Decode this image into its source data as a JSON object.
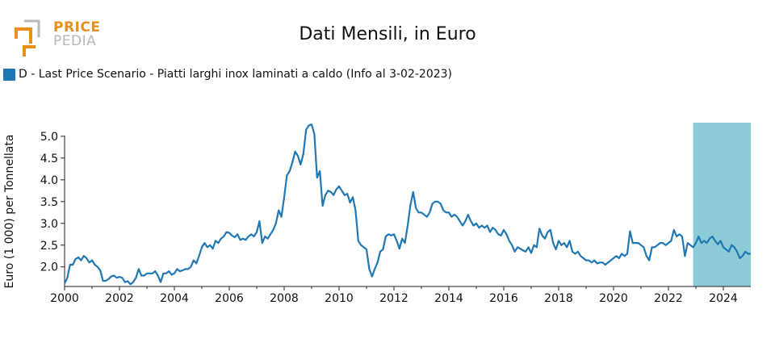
{
  "logo": {
    "line1": "PRICE",
    "line2": "PEDIA"
  },
  "colors": {
    "series": "#1f77b4",
    "forecast": "#8ecbd8",
    "logo_orange": "#e8901e",
    "logo_grey": "#b8b8b8"
  },
  "chart_data": {
    "type": "line",
    "title": "Dati Mensili, in Euro",
    "ylabel": "Euro (1 000) per Tonnellata",
    "xlabel": "",
    "xlim": [
      2000,
      2025
    ],
    "ylim": [
      1.55,
      5.35
    ],
    "xticks": [
      "2000",
      "2002",
      "2004",
      "2006",
      "2008",
      "2010",
      "2012",
      "2014",
      "2016",
      "2018",
      "2020",
      "2022",
      "2024"
    ],
    "yticks": [
      "2.0",
      "2.5",
      "3.0",
      "3.5",
      "4.0",
      "4.5",
      "5.0"
    ],
    "forecast_region": [
      2022.9,
      2025
    ],
    "grid": false,
    "legend_position": "top-left",
    "series": [
      {
        "name": "D - Last Price Scenario - Piatti larghi inox laminati a caldo (Info al 3-02-2023)",
        "points": [
          [
            2000.0,
            1.62
          ],
          [
            2000.1,
            1.75
          ],
          [
            2000.2,
            2.05
          ],
          [
            2000.3,
            2.05
          ],
          [
            2000.4,
            2.18
          ],
          [
            2000.5,
            2.22
          ],
          [
            2000.6,
            2.15
          ],
          [
            2000.7,
            2.25
          ],
          [
            2000.8,
            2.2
          ],
          [
            2000.9,
            2.1
          ],
          [
            2001.0,
            2.15
          ],
          [
            2001.1,
            2.05
          ],
          [
            2001.2,
            2.0
          ],
          [
            2001.3,
            1.92
          ],
          [
            2001.4,
            1.68
          ],
          [
            2001.5,
            1.68
          ],
          [
            2001.6,
            1.72
          ],
          [
            2001.7,
            1.78
          ],
          [
            2001.8,
            1.8
          ],
          [
            2001.9,
            1.75
          ],
          [
            2002.0,
            1.77
          ],
          [
            2002.1,
            1.75
          ],
          [
            2002.2,
            1.65
          ],
          [
            2002.3,
            1.67
          ],
          [
            2002.4,
            1.6
          ],
          [
            2002.5,
            1.65
          ],
          [
            2002.6,
            1.75
          ],
          [
            2002.7,
            1.95
          ],
          [
            2002.8,
            1.8
          ],
          [
            2002.9,
            1.8
          ],
          [
            2003.0,
            1.85
          ],
          [
            2003.1,
            1.85
          ],
          [
            2003.2,
            1.85
          ],
          [
            2003.3,
            1.9
          ],
          [
            2003.4,
            1.8
          ],
          [
            2003.5,
            1.65
          ],
          [
            2003.6,
            1.85
          ],
          [
            2003.7,
            1.85
          ],
          [
            2003.8,
            1.9
          ],
          [
            2003.9,
            1.82
          ],
          [
            2004.0,
            1.85
          ],
          [
            2004.1,
            1.95
          ],
          [
            2004.2,
            1.9
          ],
          [
            2004.3,
            1.92
          ],
          [
            2004.4,
            1.95
          ],
          [
            2004.5,
            1.95
          ],
          [
            2004.6,
            2.0
          ],
          [
            2004.7,
            2.15
          ],
          [
            2004.8,
            2.08
          ],
          [
            2004.9,
            2.25
          ],
          [
            2005.0,
            2.45
          ],
          [
            2005.1,
            2.55
          ],
          [
            2005.2,
            2.45
          ],
          [
            2005.3,
            2.5
          ],
          [
            2005.4,
            2.42
          ],
          [
            2005.5,
            2.6
          ],
          [
            2005.6,
            2.55
          ],
          [
            2005.7,
            2.65
          ],
          [
            2005.8,
            2.7
          ],
          [
            2005.9,
            2.8
          ],
          [
            2006.0,
            2.78
          ],
          [
            2006.1,
            2.72
          ],
          [
            2006.2,
            2.68
          ],
          [
            2006.3,
            2.75
          ],
          [
            2006.4,
            2.62
          ],
          [
            2006.5,
            2.65
          ],
          [
            2006.6,
            2.62
          ],
          [
            2006.7,
            2.7
          ],
          [
            2006.8,
            2.75
          ],
          [
            2006.9,
            2.7
          ],
          [
            2007.0,
            2.8
          ],
          [
            2007.1,
            3.05
          ],
          [
            2007.2,
            2.55
          ],
          [
            2007.3,
            2.7
          ],
          [
            2007.4,
            2.65
          ],
          [
            2007.5,
            2.75
          ],
          [
            2007.6,
            2.85
          ],
          [
            2007.7,
            3.0
          ],
          [
            2007.8,
            3.3
          ],
          [
            2007.9,
            3.15
          ],
          [
            2008.0,
            3.6
          ],
          [
            2008.1,
            4.1
          ],
          [
            2008.2,
            4.2
          ],
          [
            2008.3,
            4.4
          ],
          [
            2008.4,
            4.65
          ],
          [
            2008.5,
            4.55
          ],
          [
            2008.6,
            4.35
          ],
          [
            2008.7,
            4.6
          ],
          [
            2008.8,
            5.15
          ],
          [
            2008.9,
            5.25
          ],
          [
            2009.0,
            5.27
          ],
          [
            2009.1,
            5.05
          ],
          [
            2009.2,
            4.05
          ],
          [
            2009.3,
            4.2
          ],
          [
            2009.4,
            3.4
          ],
          [
            2009.5,
            3.65
          ],
          [
            2009.6,
            3.75
          ],
          [
            2009.7,
            3.72
          ],
          [
            2009.8,
            3.65
          ],
          [
            2009.9,
            3.78
          ],
          [
            2010.0,
            3.85
          ],
          [
            2010.1,
            3.75
          ],
          [
            2010.2,
            3.65
          ],
          [
            2010.3,
            3.68
          ],
          [
            2010.4,
            3.48
          ],
          [
            2010.5,
            3.6
          ],
          [
            2010.6,
            3.3
          ],
          [
            2010.7,
            2.6
          ],
          [
            2010.8,
            2.5
          ],
          [
            2010.9,
            2.45
          ],
          [
            2011.0,
            2.4
          ],
          [
            2011.1,
            1.95
          ],
          [
            2011.2,
            1.78
          ],
          [
            2011.3,
            1.95
          ],
          [
            2011.4,
            2.1
          ],
          [
            2011.5,
            2.35
          ],
          [
            2011.6,
            2.4
          ],
          [
            2011.7,
            2.7
          ],
          [
            2011.8,
            2.75
          ],
          [
            2011.9,
            2.72
          ],
          [
            2012.0,
            2.75
          ],
          [
            2012.1,
            2.6
          ],
          [
            2012.2,
            2.42
          ],
          [
            2012.3,
            2.65
          ],
          [
            2012.4,
            2.55
          ],
          [
            2012.5,
            2.95
          ],
          [
            2012.6,
            3.42
          ],
          [
            2012.7,
            3.72
          ],
          [
            2012.8,
            3.35
          ],
          [
            2012.9,
            3.25
          ],
          [
            2013.0,
            3.25
          ],
          [
            2013.1,
            3.2
          ],
          [
            2013.2,
            3.15
          ],
          [
            2013.3,
            3.25
          ],
          [
            2013.4,
            3.45
          ],
          [
            2013.5,
            3.5
          ],
          [
            2013.6,
            3.5
          ],
          [
            2013.7,
            3.45
          ],
          [
            2013.8,
            3.3
          ],
          [
            2013.9,
            3.25
          ],
          [
            2014.0,
            3.25
          ],
          [
            2014.1,
            3.15
          ],
          [
            2014.2,
            3.2
          ],
          [
            2014.3,
            3.15
          ],
          [
            2014.4,
            3.05
          ],
          [
            2014.5,
            2.95
          ],
          [
            2014.6,
            3.05
          ],
          [
            2014.7,
            3.2
          ],
          [
            2014.8,
            3.05
          ],
          [
            2014.9,
            2.95
          ],
          [
            2015.0,
            3.0
          ],
          [
            2015.1,
            2.9
          ],
          [
            2015.2,
            2.95
          ],
          [
            2015.3,
            2.9
          ],
          [
            2015.4,
            2.95
          ],
          [
            2015.5,
            2.8
          ],
          [
            2015.6,
            2.9
          ],
          [
            2015.7,
            2.85
          ],
          [
            2015.8,
            2.75
          ],
          [
            2015.9,
            2.72
          ],
          [
            2016.0,
            2.85
          ],
          [
            2016.1,
            2.75
          ],
          [
            2016.2,
            2.6
          ],
          [
            2016.3,
            2.5
          ],
          [
            2016.4,
            2.35
          ],
          [
            2016.5,
            2.45
          ],
          [
            2016.6,
            2.42
          ],
          [
            2016.7,
            2.38
          ],
          [
            2016.8,
            2.35
          ],
          [
            2016.9,
            2.45
          ],
          [
            2017.0,
            2.32
          ],
          [
            2017.1,
            2.5
          ],
          [
            2017.2,
            2.45
          ],
          [
            2017.3,
            2.88
          ],
          [
            2017.4,
            2.72
          ],
          [
            2017.5,
            2.65
          ],
          [
            2017.6,
            2.8
          ],
          [
            2017.7,
            2.85
          ],
          [
            2017.8,
            2.55
          ],
          [
            2017.9,
            2.4
          ],
          [
            2018.0,
            2.6
          ],
          [
            2018.1,
            2.5
          ],
          [
            2018.2,
            2.55
          ],
          [
            2018.3,
            2.45
          ],
          [
            2018.4,
            2.6
          ],
          [
            2018.5,
            2.35
          ],
          [
            2018.6,
            2.3
          ],
          [
            2018.7,
            2.35
          ],
          [
            2018.8,
            2.25
          ],
          [
            2018.9,
            2.2
          ],
          [
            2019.0,
            2.15
          ],
          [
            2019.1,
            2.15
          ],
          [
            2019.2,
            2.1
          ],
          [
            2019.3,
            2.15
          ],
          [
            2019.4,
            2.08
          ],
          [
            2019.5,
            2.1
          ],
          [
            2019.6,
            2.1
          ],
          [
            2019.7,
            2.05
          ],
          [
            2019.8,
            2.1
          ],
          [
            2019.9,
            2.15
          ],
          [
            2020.0,
            2.2
          ],
          [
            2020.1,
            2.25
          ],
          [
            2020.2,
            2.2
          ],
          [
            2020.3,
            2.3
          ],
          [
            2020.4,
            2.25
          ],
          [
            2020.5,
            2.3
          ],
          [
            2020.6,
            2.82
          ],
          [
            2020.7,
            2.55
          ],
          [
            2020.8,
            2.55
          ],
          [
            2020.9,
            2.55
          ],
          [
            2021.0,
            2.5
          ],
          [
            2021.1,
            2.45
          ],
          [
            2021.2,
            2.25
          ],
          [
            2021.3,
            2.15
          ],
          [
            2021.4,
            2.45
          ],
          [
            2021.5,
            2.45
          ],
          [
            2021.6,
            2.5
          ],
          [
            2021.7,
            2.55
          ],
          [
            2021.8,
            2.55
          ],
          [
            2021.9,
            2.5
          ],
          [
            2022.0,
            2.55
          ],
          [
            2022.1,
            2.6
          ],
          [
            2022.2,
            2.85
          ],
          [
            2022.3,
            2.7
          ],
          [
            2022.4,
            2.75
          ],
          [
            2022.5,
            2.7
          ],
          [
            2022.6,
            2.25
          ],
          [
            2022.7,
            2.55
          ],
          [
            2022.8,
            2.5
          ],
          [
            2022.9,
            2.45
          ],
          [
            2023.0,
            2.55
          ],
          [
            2023.1,
            2.7
          ],
          [
            2023.2,
            2.55
          ],
          [
            2023.3,
            2.6
          ],
          [
            2023.4,
            2.55
          ],
          [
            2023.5,
            2.65
          ],
          [
            2023.6,
            2.7
          ],
          [
            2023.7,
            2.6
          ],
          [
            2023.8,
            2.52
          ],
          [
            2023.9,
            2.6
          ],
          [
            2024.0,
            2.45
          ],
          [
            2024.1,
            2.4
          ],
          [
            2024.2,
            2.35
          ],
          [
            2024.3,
            2.5
          ],
          [
            2024.4,
            2.45
          ],
          [
            2024.5,
            2.35
          ],
          [
            2024.6,
            2.2
          ],
          [
            2024.7,
            2.25
          ],
          [
            2024.8,
            2.35
          ],
          [
            2024.9,
            2.3
          ],
          [
            2025.0,
            2.3
          ]
        ]
      }
    ]
  }
}
